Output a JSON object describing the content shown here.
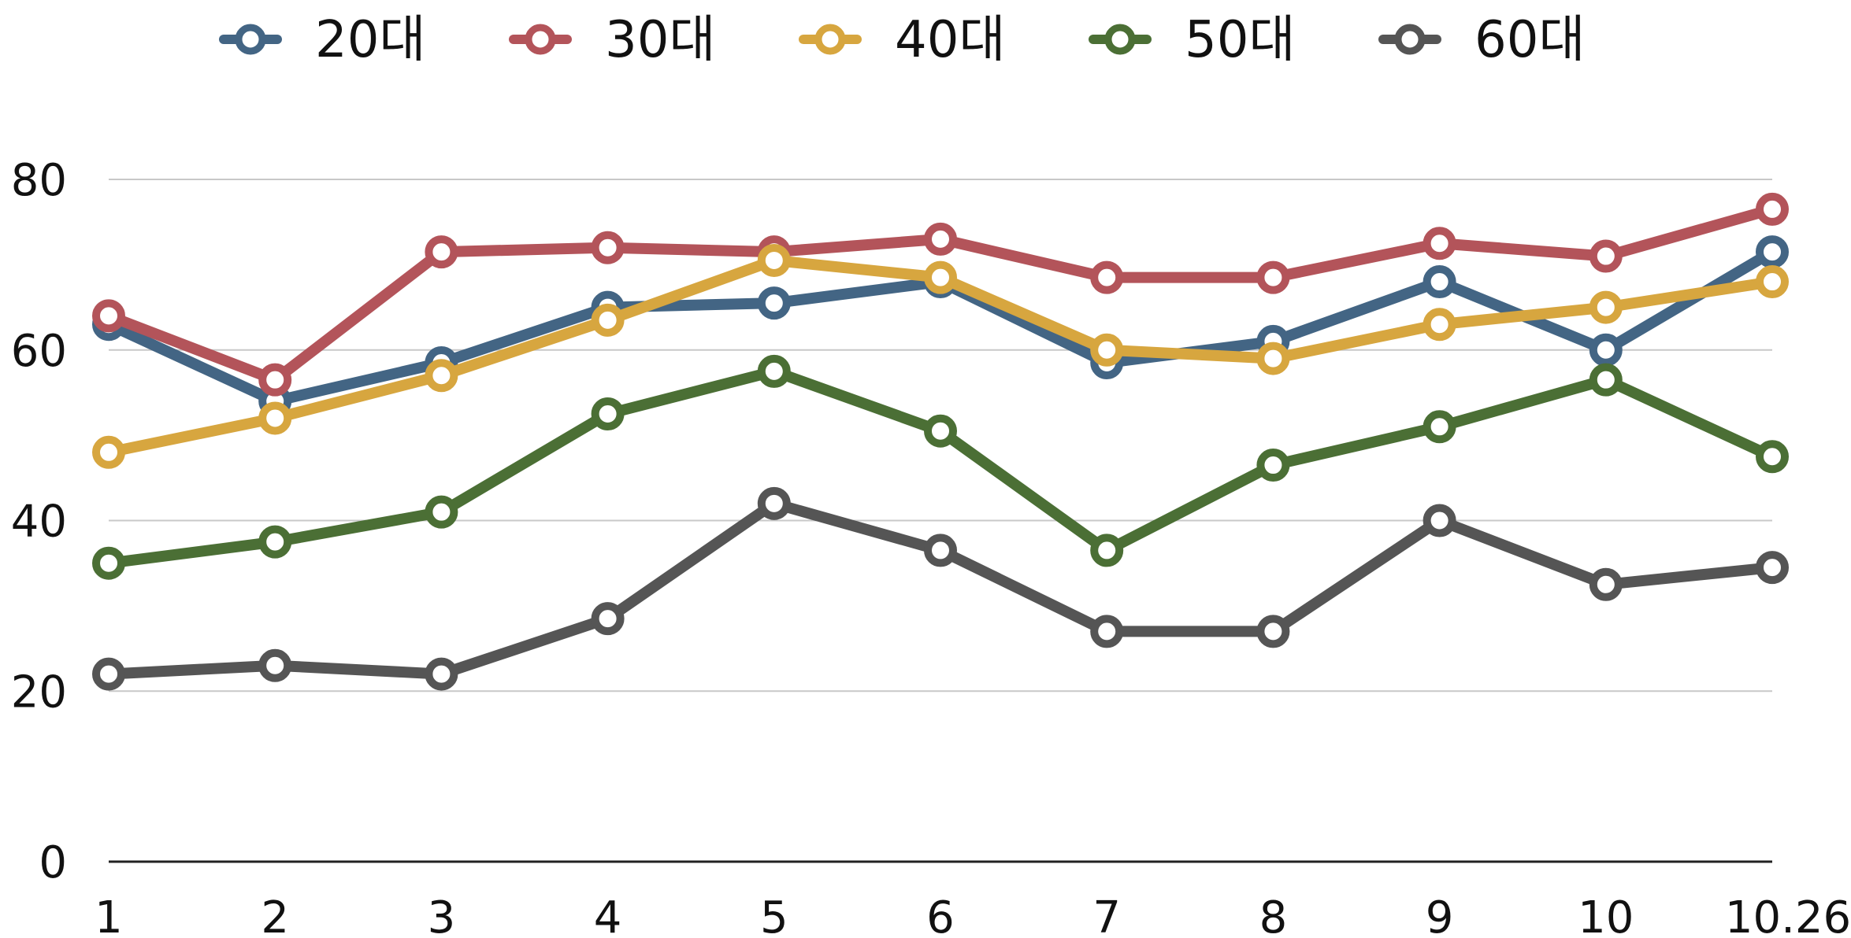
{
  "chart_data": {
    "type": "line",
    "title": "",
    "xlabel": "",
    "ylabel": "",
    "categories": [
      "1",
      "2",
      "3",
      "4",
      "5",
      "6",
      "7",
      "8",
      "9",
      "10",
      "10.26"
    ],
    "ylim": [
      0,
      80
    ],
    "yticks": [
      0,
      20,
      40,
      60,
      80
    ],
    "grid": true,
    "legend_position": "top",
    "series": [
      {
        "name": "20대",
        "color": "#436584",
        "values": [
          63,
          54,
          58.5,
          65,
          65.5,
          68,
          58.5,
          61,
          68,
          60,
          71.5
        ]
      },
      {
        "name": "30대",
        "color": "#B3545A",
        "values": [
          64,
          56.5,
          71.5,
          72,
          71.5,
          73,
          68.5,
          68.5,
          72.5,
          71,
          76.5
        ]
      },
      {
        "name": "40대",
        "color": "#D7A63F",
        "values": [
          48,
          52,
          57,
          63.5,
          70.5,
          68.5,
          60,
          59,
          63,
          65,
          68
        ]
      },
      {
        "name": "50대",
        "color": "#4B6F35",
        "values": [
          35,
          37.5,
          41,
          52.5,
          57.5,
          50.5,
          36.5,
          46.5,
          51,
          56.5,
          47.5
        ]
      },
      {
        "name": "60대",
        "color": "#555555",
        "values": [
          22,
          23,
          22,
          28.5,
          42,
          36.5,
          27,
          27,
          40,
          32.5,
          34.5
        ]
      }
    ]
  }
}
